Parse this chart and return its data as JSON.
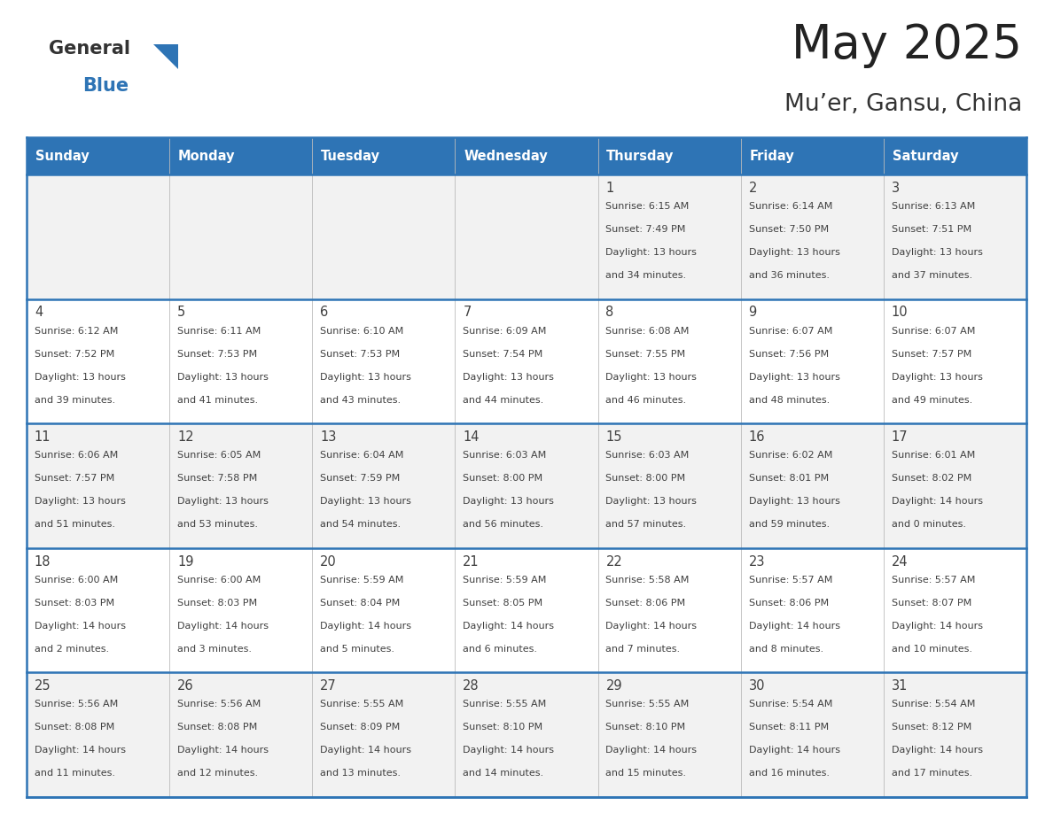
{
  "title": "May 2025",
  "subtitle": "Mu’er, Gansu, China",
  "header_bg": "#2E74B5",
  "header_text_color": "#FFFFFF",
  "border_color": "#2E74B5",
  "row_bg_light": "#F2F2F2",
  "row_bg_white": "#FFFFFF",
  "text_color": "#404040",
  "days_of_week": [
    "Sunday",
    "Monday",
    "Tuesday",
    "Wednesday",
    "Thursday",
    "Friday",
    "Saturday"
  ],
  "calendar_data": [
    [
      {
        "day": "",
        "sunrise": "",
        "sunset": "",
        "daylight_hours": "",
        "daylight_mins": ""
      },
      {
        "day": "",
        "sunrise": "",
        "sunset": "",
        "daylight_hours": "",
        "daylight_mins": ""
      },
      {
        "day": "",
        "sunrise": "",
        "sunset": "",
        "daylight_hours": "",
        "daylight_mins": ""
      },
      {
        "day": "",
        "sunrise": "",
        "sunset": "",
        "daylight_hours": "",
        "daylight_mins": ""
      },
      {
        "day": "1",
        "sunrise": "6:15 AM",
        "sunset": "7:49 PM",
        "daylight_hours": "13",
        "daylight_mins": "34"
      },
      {
        "day": "2",
        "sunrise": "6:14 AM",
        "sunset": "7:50 PM",
        "daylight_hours": "13",
        "daylight_mins": "36"
      },
      {
        "day": "3",
        "sunrise": "6:13 AM",
        "sunset": "7:51 PM",
        "daylight_hours": "13",
        "daylight_mins": "37"
      }
    ],
    [
      {
        "day": "4",
        "sunrise": "6:12 AM",
        "sunset": "7:52 PM",
        "daylight_hours": "13",
        "daylight_mins": "39"
      },
      {
        "day": "5",
        "sunrise": "6:11 AM",
        "sunset": "7:53 PM",
        "daylight_hours": "13",
        "daylight_mins": "41"
      },
      {
        "day": "6",
        "sunrise": "6:10 AM",
        "sunset": "7:53 PM",
        "daylight_hours": "13",
        "daylight_mins": "43"
      },
      {
        "day": "7",
        "sunrise": "6:09 AM",
        "sunset": "7:54 PM",
        "daylight_hours": "13",
        "daylight_mins": "44"
      },
      {
        "day": "8",
        "sunrise": "6:08 AM",
        "sunset": "7:55 PM",
        "daylight_hours": "13",
        "daylight_mins": "46"
      },
      {
        "day": "9",
        "sunrise": "6:07 AM",
        "sunset": "7:56 PM",
        "daylight_hours": "13",
        "daylight_mins": "48"
      },
      {
        "day": "10",
        "sunrise": "6:07 AM",
        "sunset": "7:57 PM",
        "daylight_hours": "13",
        "daylight_mins": "49"
      }
    ],
    [
      {
        "day": "11",
        "sunrise": "6:06 AM",
        "sunset": "7:57 PM",
        "daylight_hours": "13",
        "daylight_mins": "51"
      },
      {
        "day": "12",
        "sunrise": "6:05 AM",
        "sunset": "7:58 PM",
        "daylight_hours": "13",
        "daylight_mins": "53"
      },
      {
        "day": "13",
        "sunrise": "6:04 AM",
        "sunset": "7:59 PM",
        "daylight_hours": "13",
        "daylight_mins": "54"
      },
      {
        "day": "14",
        "sunrise": "6:03 AM",
        "sunset": "8:00 PM",
        "daylight_hours": "13",
        "daylight_mins": "56"
      },
      {
        "day": "15",
        "sunrise": "6:03 AM",
        "sunset": "8:00 PM",
        "daylight_hours": "13",
        "daylight_mins": "57"
      },
      {
        "day": "16",
        "sunrise": "6:02 AM",
        "sunset": "8:01 PM",
        "daylight_hours": "13",
        "daylight_mins": "59"
      },
      {
        "day": "17",
        "sunrise": "6:01 AM",
        "sunset": "8:02 PM",
        "daylight_hours": "14",
        "daylight_mins": "0"
      }
    ],
    [
      {
        "day": "18",
        "sunrise": "6:00 AM",
        "sunset": "8:03 PM",
        "daylight_hours": "14",
        "daylight_mins": "2"
      },
      {
        "day": "19",
        "sunrise": "6:00 AM",
        "sunset": "8:03 PM",
        "daylight_hours": "14",
        "daylight_mins": "3"
      },
      {
        "day": "20",
        "sunrise": "5:59 AM",
        "sunset": "8:04 PM",
        "daylight_hours": "14",
        "daylight_mins": "5"
      },
      {
        "day": "21",
        "sunrise": "5:59 AM",
        "sunset": "8:05 PM",
        "daylight_hours": "14",
        "daylight_mins": "6"
      },
      {
        "day": "22",
        "sunrise": "5:58 AM",
        "sunset": "8:06 PM",
        "daylight_hours": "14",
        "daylight_mins": "7"
      },
      {
        "day": "23",
        "sunrise": "5:57 AM",
        "sunset": "8:06 PM",
        "daylight_hours": "14",
        "daylight_mins": "8"
      },
      {
        "day": "24",
        "sunrise": "5:57 AM",
        "sunset": "8:07 PM",
        "daylight_hours": "14",
        "daylight_mins": "10"
      }
    ],
    [
      {
        "day": "25",
        "sunrise": "5:56 AM",
        "sunset": "8:08 PM",
        "daylight_hours": "14",
        "daylight_mins": "11"
      },
      {
        "day": "26",
        "sunrise": "5:56 AM",
        "sunset": "8:08 PM",
        "daylight_hours": "14",
        "daylight_mins": "12"
      },
      {
        "day": "27",
        "sunrise": "5:55 AM",
        "sunset": "8:09 PM",
        "daylight_hours": "14",
        "daylight_mins": "13"
      },
      {
        "day": "28",
        "sunrise": "5:55 AM",
        "sunset": "8:10 PM",
        "daylight_hours": "14",
        "daylight_mins": "14"
      },
      {
        "day": "29",
        "sunrise": "5:55 AM",
        "sunset": "8:10 PM",
        "daylight_hours": "14",
        "daylight_mins": "15"
      },
      {
        "day": "30",
        "sunrise": "5:54 AM",
        "sunset": "8:11 PM",
        "daylight_hours": "14",
        "daylight_mins": "16"
      },
      {
        "day": "31",
        "sunrise": "5:54 AM",
        "sunset": "8:12 PM",
        "daylight_hours": "14",
        "daylight_mins": "17"
      }
    ]
  ]
}
